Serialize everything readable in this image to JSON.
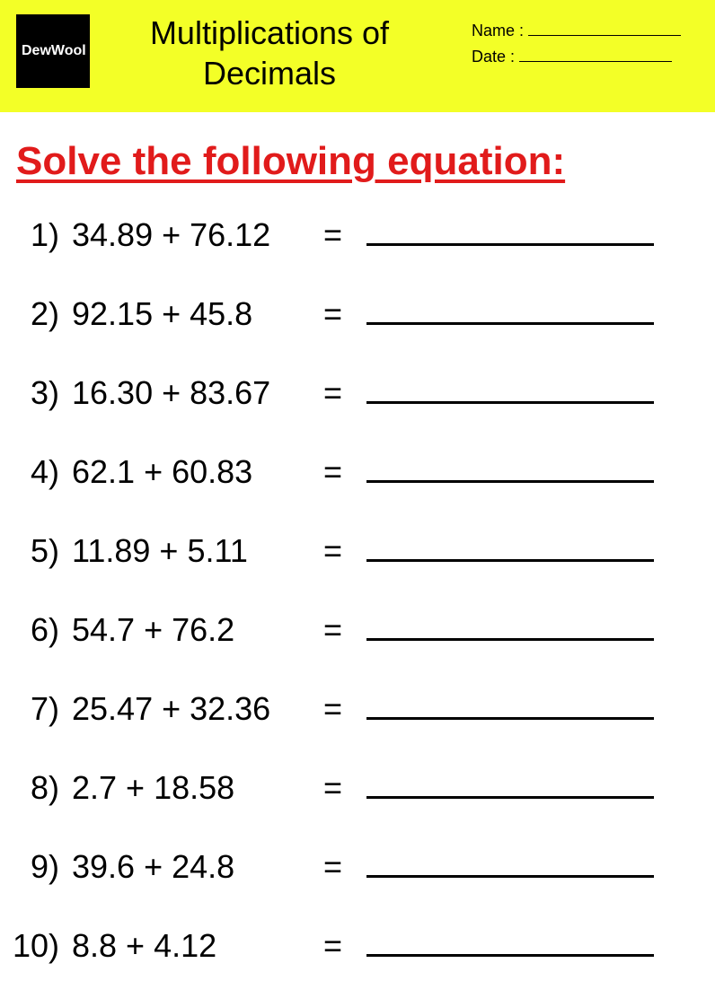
{
  "header": {
    "logo_text": "DewWool",
    "title": "Multiplications of Decimals",
    "name_label": "Name  :",
    "date_label": "Date  :",
    "header_bg": "#f3ff27",
    "logo_bg": "#000000",
    "logo_color": "#ffffff"
  },
  "instruction": {
    "text": "Solve the following equation:",
    "color": "#e11b1b",
    "fontsize": 44
  },
  "problems": [
    {
      "num": "1)",
      "expr": "34.89 + 76.12"
    },
    {
      "num": "2)",
      "expr": "92.15 + 45.8"
    },
    {
      "num": "3)",
      "expr": "16.30 + 83.67"
    },
    {
      "num": "4)",
      "expr": "62.1 + 60.83"
    },
    {
      "num": "5)",
      "expr": "11.89 + 5.11"
    },
    {
      "num": "6)",
      "expr": "54.7 + 76.2"
    },
    {
      "num": "7)",
      "expr": "25.47 + 32.36"
    },
    {
      "num": "8)",
      "expr": "2.7 + 18.58"
    },
    {
      "num": "9)",
      "expr": "39.6 + 24.8"
    },
    {
      "num": "10)",
      "expr": "8.8 + 4.12"
    }
  ],
  "style": {
    "body_font": "Comic Sans MS",
    "problem_fontsize": 36,
    "row_gap": 46,
    "blank_width": 320,
    "blank_border": "#000000"
  }
}
